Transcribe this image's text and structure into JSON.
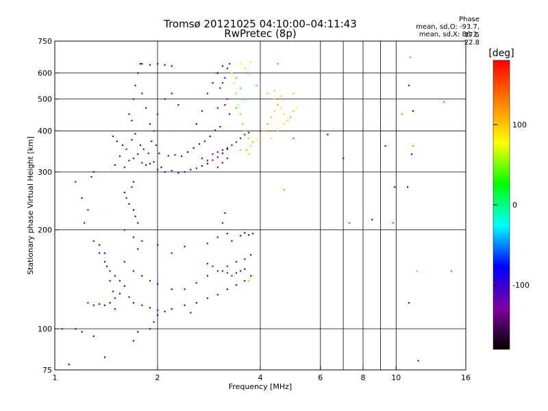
{
  "chart_data": {
    "type": "scatter",
    "title": "Tromsø 20121025 04:10:00–04:11:43",
    "subtitle": "RwPretec (8p)",
    "xlabel": "Frequency [MHz]",
    "ylabel": "Stationary phase Virtual Height [km]",
    "x_scale": "log",
    "y_scale": "log",
    "xlim": [
      1,
      16
    ],
    "ylim": [
      75,
      750
    ],
    "x_ticks": [
      1,
      2,
      4,
      6,
      8,
      10,
      16
    ],
    "x_tick_labels": [
      "1",
      "2",
      "4",
      "6",
      "8",
      "10",
      "16"
    ],
    "x_minor_ticks": [
      7,
      9
    ],
    "y_ticks": [
      75,
      100,
      200,
      300,
      400,
      500,
      600,
      750
    ],
    "y_tick_labels": [
      "75",
      "100",
      "200",
      "300",
      "400",
      "500",
      "600",
      "750"
    ],
    "grid": true,
    "phase_header": "Phase",
    "phase_stats": [
      "mean, sd,O: -93.7, 17.5",
      "mean, sd,X:  86.1, 22.8"
    ],
    "colorbar": {
      "label": "[deg]",
      "range": [
        -180,
        180
      ],
      "ticks": [
        100,
        0,
        -100
      ],
      "tick_labels": [
        "100",
        "0",
        "-100"
      ],
      "colormap": "rainbow",
      "colors": [
        "#000000",
        "#8000a0",
        "#0000ff",
        "#00ffff",
        "#00ff00",
        "#ffff00",
        "#ff8000",
        "#ff0000"
      ]
    },
    "series": [
      {
        "mode": "O",
        "color_phase": -100,
        "points": [
          [
            1.5,
            315
          ],
          [
            1.55,
            335
          ],
          [
            1.6,
            310
          ],
          [
            1.65,
            325
          ],
          [
            1.7,
            330
          ],
          [
            1.75,
            340
          ],
          [
            1.8,
            320
          ],
          [
            1.85,
            315
          ],
          [
            1.9,
            318
          ],
          [
            1.95,
            322
          ],
          [
            2.0,
            305
          ],
          [
            2.05,
            310
          ],
          [
            2.1,
            300
          ],
          [
            2.2,
            303
          ],
          [
            2.3,
            298
          ],
          [
            2.4,
            300
          ],
          [
            2.5,
            305
          ],
          [
            2.6,
            308
          ],
          [
            2.7,
            313
          ],
          [
            2.8,
            318
          ],
          [
            2.9,
            326
          ],
          [
            3.0,
            333
          ],
          [
            3.1,
            342
          ],
          [
            3.2,
            352
          ],
          [
            1.48,
            385
          ],
          [
            1.52,
            372
          ],
          [
            1.58,
            362
          ],
          [
            1.62,
            352
          ],
          [
            1.68,
            376
          ],
          [
            1.72,
            392
          ],
          [
            1.78,
            362
          ],
          [
            1.82,
            352
          ],
          [
            1.88,
            342
          ],
          [
            1.92,
            372
          ],
          [
            1.98,
            362
          ],
          [
            2.02,
            342
          ],
          [
            2.15,
            336
          ],
          [
            2.25,
            338
          ],
          [
            2.35,
            335
          ],
          [
            2.45,
            345
          ],
          [
            2.55,
            355
          ],
          [
            2.65,
            365
          ],
          [
            2.75,
            372
          ],
          [
            2.85,
            385
          ],
          [
            2.95,
            402
          ],
          [
            3.05,
            412
          ],
          [
            1.65,
            450
          ],
          [
            1.7,
            500
          ],
          [
            1.72,
            550
          ],
          [
            1.75,
            600
          ],
          [
            1.78,
            640
          ],
          [
            1.8,
            520
          ],
          [
            1.68,
            430
          ],
          [
            1.85,
            470
          ],
          [
            1.9,
            420
          ],
          [
            1.95,
            400
          ],
          [
            2.0,
            450
          ],
          [
            2.1,
            500
          ],
          [
            2.2,
            520
          ],
          [
            2.3,
            480
          ],
          [
            2.6,
            420
          ],
          [
            2.7,
            460
          ],
          [
            2.8,
            520
          ],
          [
            2.9,
            560
          ],
          [
            3.0,
            600
          ],
          [
            3.1,
            630
          ],
          [
            3.15,
            580
          ],
          [
            3.2,
            500
          ],
          [
            3.25,
            450
          ],
          [
            3.05,
            540
          ],
          [
            1.8,
            640
          ],
          [
            1.9,
            635
          ],
          [
            2.0,
            640
          ],
          [
            2.1,
            635
          ],
          [
            2.2,
            630
          ],
          [
            1.6,
            260
          ],
          [
            1.65,
            240
          ],
          [
            1.7,
            230
          ],
          [
            1.72,
            220
          ],
          [
            1.75,
            210
          ],
          [
            1.7,
            280
          ],
          [
            1.68,
            270
          ],
          [
            1.62,
            250
          ],
          [
            1.3,
            185
          ],
          [
            1.35,
            170
          ],
          [
            1.4,
            160
          ],
          [
            1.45,
            150
          ],
          [
            1.5,
            145
          ],
          [
            1.55,
            140
          ],
          [
            1.6,
            135
          ],
          [
            1.65,
            125
          ],
          [
            1.7,
            120
          ],
          [
            1.8,
            118
          ],
          [
            1.9,
            116
          ],
          [
            2.0,
            114
          ],
          [
            2.1,
            113
          ],
          [
            2.2,
            115
          ],
          [
            2.4,
            118
          ],
          [
            2.6,
            120
          ],
          [
            2.8,
            124
          ],
          [
            3.0,
            127
          ],
          [
            3.2,
            132
          ],
          [
            3.4,
            136
          ],
          [
            3.6,
            140
          ],
          [
            3.75,
            145
          ],
          [
            1.25,
            120
          ],
          [
            1.3,
            118
          ],
          [
            1.35,
            119
          ],
          [
            1.4,
            118
          ],
          [
            1.45,
            120
          ],
          [
            1.5,
            124
          ],
          [
            1.55,
            128
          ],
          [
            1.6,
            160
          ],
          [
            1.7,
            150
          ],
          [
            1.8,
            145
          ],
          [
            1.9,
            140
          ],
          [
            2.0,
            137
          ],
          [
            2.2,
            132
          ],
          [
            2.4,
            132
          ],
          [
            2.6,
            138
          ],
          [
            2.8,
            145
          ],
          [
            3.0,
            150
          ],
          [
            3.2,
            155
          ],
          [
            3.4,
            160
          ],
          [
            3.6,
            163
          ],
          [
            3.75,
            168
          ],
          [
            1.6,
            200
          ],
          [
            1.7,
            190
          ],
          [
            1.75,
            175
          ],
          [
            1.8,
            185
          ],
          [
            2.0,
            180
          ],
          [
            2.2,
            170
          ],
          [
            2.4,
            178
          ],
          [
            2.8,
            182
          ],
          [
            3.0,
            190
          ],
          [
            3.1,
            210
          ],
          [
            3.15,
            225
          ],
          [
            3.2,
            195
          ],
          [
            3.3,
            185
          ],
          [
            3.5,
            192
          ],
          [
            3.6,
            196
          ],
          [
            3.7,
            193
          ],
          [
            3.8,
            195
          ],
          [
            1.35,
            180
          ],
          [
            1.4,
            170
          ],
          [
            1.42,
            155
          ],
          [
            1.45,
            140
          ],
          [
            1.48,
            130
          ],
          [
            1.5,
            115
          ],
          [
            1.2,
            250
          ],
          [
            1.25,
            230
          ],
          [
            1.22,
            210
          ],
          [
            1.15,
            280
          ],
          [
            1.3,
            300
          ],
          [
            1.28,
            290
          ],
          [
            1.15,
            100
          ],
          [
            1.2,
            98
          ],
          [
            1.05,
            100
          ],
          [
            1.3,
            95
          ],
          [
            1.4,
            82
          ],
          [
            1.1,
            78
          ],
          [
            1.9,
            100
          ],
          [
            1.95,
            105
          ],
          [
            2.0,
            110
          ],
          [
            2.5,
            112
          ],
          [
            1.7,
            92
          ],
          [
            1.75,
            98
          ]
        ]
      },
      {
        "mode": "O",
        "color_phase": -130,
        "points": [
          [
            2.9,
            340
          ],
          [
            3.0,
            345
          ],
          [
            3.1,
            350
          ],
          [
            3.2,
            355
          ],
          [
            3.3,
            362
          ],
          [
            3.4,
            370
          ],
          [
            3.5,
            380
          ],
          [
            3.6,
            390
          ],
          [
            3.7,
            395
          ],
          [
            3.1,
            320
          ],
          [
            3.2,
            330
          ],
          [
            3.0,
            310
          ],
          [
            2.7,
            330
          ],
          [
            2.8,
            325
          ],
          [
            3.0,
            600
          ],
          [
            3.1,
            560
          ],
          [
            3.2,
            620
          ],
          [
            3.25,
            640
          ],
          [
            3.15,
            480
          ],
          [
            3.0,
            470
          ],
          [
            3.1,
            150
          ],
          [
            3.2,
            148
          ],
          [
            3.3,
            145
          ],
          [
            3.4,
            148
          ],
          [
            3.5,
            150
          ],
          [
            3.6,
            152
          ],
          [
            2.8,
            158
          ],
          [
            2.9,
            155
          ]
        ]
      },
      {
        "mode": "X",
        "color_phase": 60,
        "points": [
          [
            3.3,
            600
          ],
          [
            3.35,
            560
          ],
          [
            3.4,
            520
          ],
          [
            3.45,
            480
          ],
          [
            3.5,
            450
          ],
          [
            3.55,
            420
          ],
          [
            3.6,
            400
          ],
          [
            3.7,
            380
          ],
          [
            3.8,
            370
          ],
          [
            3.9,
            375
          ],
          [
            3.75,
            360
          ],
          [
            3.65,
            350
          ],
          [
            3.7,
            340
          ],
          [
            3.5,
            350
          ],
          [
            3.8,
            145
          ],
          [
            3.7,
            140
          ]
        ]
      },
      {
        "mode": "X",
        "color_phase": 100,
        "points": [
          [
            4.0,
            380
          ],
          [
            4.1,
            400
          ],
          [
            4.2,
            420
          ],
          [
            4.3,
            440
          ],
          [
            4.4,
            460
          ],
          [
            4.5,
            480
          ],
          [
            4.6,
            470
          ],
          [
            4.7,
            450
          ],
          [
            4.8,
            430
          ],
          [
            4.9,
            440
          ],
          [
            5.0,
            460
          ],
          [
            5.1,
            470
          ],
          [
            4.3,
            380
          ],
          [
            4.5,
            400
          ],
          [
            4.7,
            420
          ],
          [
            4.4,
            500
          ],
          [
            4.6,
            510
          ],
          [
            3.6,
            620
          ],
          [
            3.5,
            640
          ],
          [
            3.75,
            650
          ],
          [
            4.2,
            520
          ],
          [
            4.4,
            530
          ],
          [
            5.0,
            520
          ]
        ]
      },
      {
        "mode": "X",
        "color_phase": 20,
        "points": [
          [
            3.4,
            580
          ],
          [
            3.5,
            540
          ],
          [
            3.6,
            500
          ],
          [
            3.4,
            470
          ],
          [
            3.7,
            600
          ],
          [
            3.9,
            550
          ]
        ]
      },
      {
        "mode": "sparse",
        "color_phase": 140,
        "points": [
          [
            4.7,
            265
          ],
          [
            7.3,
            210
          ],
          [
            9.8,
            210
          ],
          [
            11.5,
            150
          ],
          [
            14.5,
            150
          ],
          [
            10.4,
            450
          ],
          [
            11.0,
            670
          ],
          [
            4.5,
            640
          ],
          [
            5.0,
            380
          ],
          [
            13.8,
            490
          ],
          [
            11.2,
            360
          ]
        ]
      },
      {
        "mode": "sparse",
        "color_phase": -90,
        "points": [
          [
            6.3,
            390
          ],
          [
            8.5,
            215
          ],
          [
            9.9,
            270
          ],
          [
            10.8,
            270
          ],
          [
            10.9,
            120
          ],
          [
            11.2,
            460
          ],
          [
            11.6,
            80
          ],
          [
            10.9,
            550
          ],
          [
            11.1,
            340
          ],
          [
            9.3,
            360
          ],
          [
            7.0,
            330
          ]
        ]
      }
    ]
  }
}
